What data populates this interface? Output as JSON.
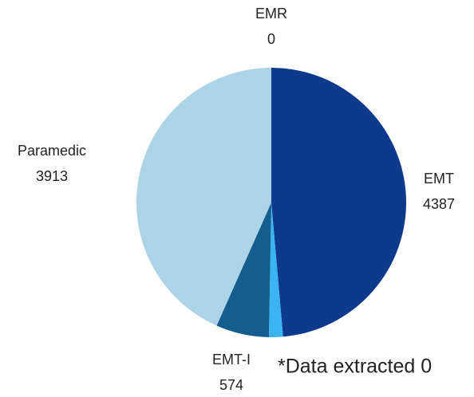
{
  "chart_data": {
    "type": "pie",
    "categories": [
      "EMR",
      "EMT",
      null,
      "EMT-I",
      "Paramedic"
    ],
    "values": [
      0,
      4387,
      151,
      574,
      3913
    ],
    "colors": [
      "#1f4e9a",
      "#0d3a8c",
      "#3ab4f2",
      "#135e8f",
      "#add4e6"
    ],
    "annotation": "*Data extracted 0"
  }
}
